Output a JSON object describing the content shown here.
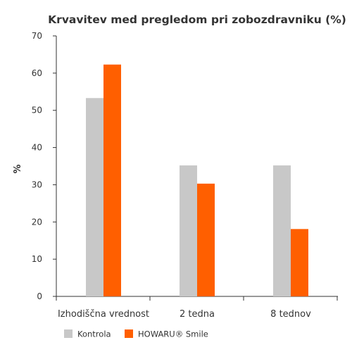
{
  "chart_data": {
    "type": "bar",
    "title": "Krvavitev med pregledom pri zobozdravniku (%)",
    "xlabel": "",
    "ylabel": "%",
    "categories": [
      "Izhodiščna vrednost",
      "2 tedna",
      "8 tednov"
    ],
    "series": [
      {
        "name": "Kontrola",
        "values": [
          53.3,
          35.2,
          35.2
        ],
        "color": "#c8c8c8"
      },
      {
        "name": "HOWARU® Smile",
        "values": [
          62.3,
          30.3,
          18.1
        ],
        "color": "#ff5f00"
      }
    ],
    "ylim": [
      0,
      70
    ],
    "yticks": [
      0,
      10,
      20,
      30,
      40,
      50,
      60,
      70
    ],
    "grid": false,
    "legend_position": "bottom-left"
  }
}
